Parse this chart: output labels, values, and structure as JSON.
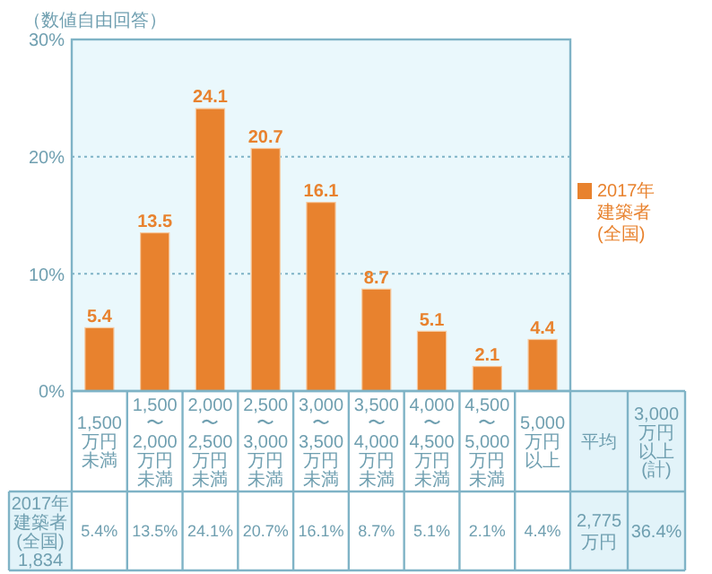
{
  "chart_data": {
    "type": "bar",
    "subtitle": "（数値自由回答）",
    "categories": [
      "1,500万円未満",
      "1,500〜2,000万円未満",
      "2,000〜2,500万円未満",
      "2,500〜3,000万円未満",
      "3,000〜3,500万円未満",
      "3,500〜4,000万円未満",
      "4,000〜4,500万円未満",
      "4,500〜5,000万円未満",
      "5,000万円以上"
    ],
    "series": [
      {
        "name": "2017年建築者(全国)",
        "color": "#e8822e",
        "values": [
          5.4,
          13.5,
          24.1,
          20.7,
          16.1,
          8.7,
          5.1,
          2.1,
          4.4
        ],
        "value_labels": [
          "5.4",
          "13.5",
          "24.1",
          "20.7",
          "16.1",
          "8.7",
          "5.1",
          "2.1",
          "4.4"
        ]
      }
    ],
    "ylim": [
      0,
      30
    ],
    "yticks": [
      {
        "value": 0,
        "label": "0%"
      },
      {
        "value": 10,
        "label": "10%"
      },
      {
        "value": 20,
        "label": "20%"
      },
      {
        "value": 30,
        "label": "30%"
      }
    ],
    "grid": "y",
    "legend": "right",
    "annotations": [
      "2017年建築者(全国)1,834",
      "平均",
      "2,775万円",
      "3,000万円以上(計)",
      "36.4%",
      "5.4%",
      "13.5%",
      "24.1%",
      "20.7%",
      "16.1%",
      "8.7%",
      "5.1%",
      "2.1%",
      "4.4%"
    ]
  }
}
